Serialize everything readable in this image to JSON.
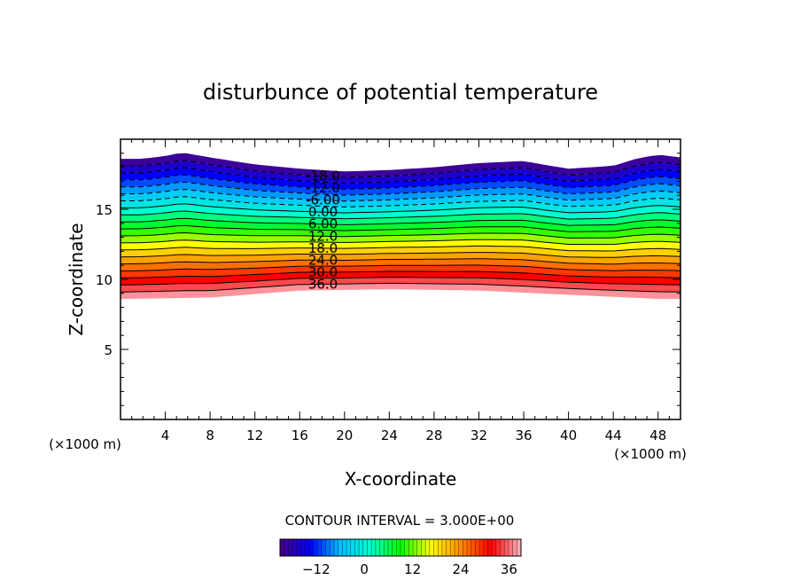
{
  "chart_data": {
    "type": "contour",
    "title": "disturbunce of potential temperature",
    "xlabel": "X-coordinate",
    "ylabel": "Z-coordinate",
    "x_unit_left": "(×1000 m)",
    "x_unit_right": "(×1000 m)",
    "xlim": [
      0,
      50
    ],
    "ylim": [
      0,
      20
    ],
    "x_ticks": [
      4,
      8,
      12,
      16,
      20,
      24,
      28,
      32,
      36,
      40,
      44,
      48
    ],
    "x_tick_labels": [
      "4",
      "8",
      "12",
      "16",
      "20",
      "24",
      "28",
      "32",
      "36",
      "40",
      "44",
      "48"
    ],
    "y_ticks": [
      5,
      10,
      15
    ],
    "y_tick_labels": [
      "5",
      "10",
      "15"
    ],
    "contour_interval_text": "CONTOUR INTERVAL = 3.000E+00",
    "contour_interval": 3,
    "level_min": -21,
    "level_max": 39,
    "contour_labels": [
      "-18.0",
      "-12.0",
      "-6.00",
      "0.00",
      "6.00",
      "12.0",
      "18.0",
      "24.0",
      "30.0",
      "36.0"
    ],
    "contour_label_x": 18,
    "top_boundary": {
      "x": [
        0,
        2,
        4,
        5.5,
        8,
        12,
        16,
        20,
        24,
        28,
        32,
        36,
        38,
        40,
        44,
        46,
        48,
        50
      ],
      "z": [
        18.6,
        18.6,
        18.8,
        19.05,
        18.7,
        18.2,
        17.9,
        17.7,
        17.8,
        18.0,
        18.3,
        18.45,
        18.15,
        17.9,
        18.1,
        18.6,
        18.9,
        18.7
      ]
    },
    "bottom_boundary": {
      "x": [
        0,
        8,
        16,
        24,
        32,
        40,
        48,
        50
      ],
      "z": [
        8.6,
        8.7,
        9.2,
        9.3,
        9.2,
        8.9,
        8.6,
        8.6
      ]
    },
    "colorbar_ticks": [
      -12,
      0,
      12,
      24,
      36
    ],
    "colorbar_tick_labels": [
      "−12",
      "0",
      "12",
      "24",
      "36"
    ],
    "colormap": [
      "#4b0082",
      "#0000ff",
      "#00bfff",
      "#00ffd0",
      "#00ff00",
      "#ffff00",
      "#ff8c00",
      "#ff0000",
      "#ffb6c1"
    ]
  }
}
